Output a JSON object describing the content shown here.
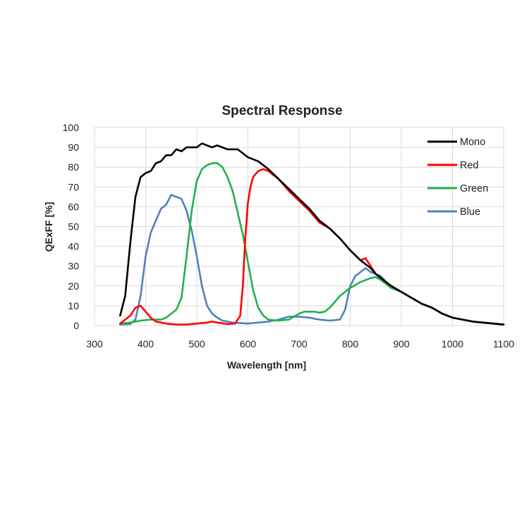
{
  "chart_data": {
    "type": "line",
    "title": "Spectral Response",
    "xlabel": "Wavelength [nm]",
    "ylabel": "QExFF [%]",
    "xlim": [
      300,
      1100
    ],
    "ylim": [
      0,
      100
    ],
    "xticks": [
      300,
      400,
      500,
      600,
      700,
      800,
      900,
      1000,
      1100
    ],
    "yticks": [
      0,
      10,
      20,
      30,
      40,
      50,
      60,
      70,
      80,
      90,
      100
    ],
    "grid": true,
    "legend_position": "top-right",
    "series": [
      {
        "name": "Mono",
        "color": "#000000",
        "points": [
          [
            350,
            5
          ],
          [
            360,
            15
          ],
          [
            370,
            42
          ],
          [
            380,
            65
          ],
          [
            390,
            75
          ],
          [
            400,
            77
          ],
          [
            410,
            78
          ],
          [
            420,
            82
          ],
          [
            430,
            83
          ],
          [
            440,
            86
          ],
          [
            450,
            86
          ],
          [
            460,
            89
          ],
          [
            470,
            88
          ],
          [
            480,
            90
          ],
          [
            490,
            90
          ],
          [
            500,
            90
          ],
          [
            510,
            92
          ],
          [
            520,
            91
          ],
          [
            530,
            90
          ],
          [
            540,
            91
          ],
          [
            550,
            90
          ],
          [
            560,
            89
          ],
          [
            570,
            89
          ],
          [
            580,
            89
          ],
          [
            590,
            87
          ],
          [
            600,
            85
          ],
          [
            620,
            83
          ],
          [
            640,
            79
          ],
          [
            660,
            74
          ],
          [
            680,
            69
          ],
          [
            700,
            64
          ],
          [
            720,
            59
          ],
          [
            740,
            53
          ],
          [
            760,
            49
          ],
          [
            780,
            44
          ],
          [
            800,
            38
          ],
          [
            820,
            33
          ],
          [
            840,
            29
          ],
          [
            850,
            26
          ],
          [
            860,
            24
          ],
          [
            880,
            20
          ],
          [
            900,
            17
          ],
          [
            920,
            14
          ],
          [
            940,
            11
          ],
          [
            960,
            9
          ],
          [
            980,
            6
          ],
          [
            1000,
            4
          ],
          [
            1020,
            3
          ],
          [
            1040,
            2
          ],
          [
            1060,
            1.5
          ],
          [
            1080,
            1
          ],
          [
            1100,
            0.5
          ]
        ]
      },
      {
        "name": "Red",
        "color": "#ff0000",
        "points": [
          [
            350,
            1
          ],
          [
            360,
            3
          ],
          [
            370,
            5
          ],
          [
            380,
            9
          ],
          [
            390,
            10
          ],
          [
            400,
            7
          ],
          [
            410,
            4
          ],
          [
            420,
            2
          ],
          [
            440,
            1
          ],
          [
            460,
            0.5
          ],
          [
            480,
            0.5
          ],
          [
            500,
            1
          ],
          [
            520,
            1.5
          ],
          [
            530,
            2
          ],
          [
            540,
            1.5
          ],
          [
            560,
            0.8
          ],
          [
            575,
            1
          ],
          [
            585,
            5
          ],
          [
            590,
            20
          ],
          [
            595,
            45
          ],
          [
            600,
            62
          ],
          [
            605,
            70
          ],
          [
            610,
            75
          ],
          [
            620,
            78
          ],
          [
            630,
            79
          ],
          [
            640,
            78
          ],
          [
            660,
            74
          ],
          [
            680,
            68
          ],
          [
            700,
            63
          ],
          [
            720,
            58
          ],
          [
            740,
            52
          ],
          [
            760,
            49
          ],
          [
            780,
            44
          ],
          [
            800,
            38
          ],
          [
            820,
            33
          ],
          [
            830,
            34
          ],
          [
            840,
            30
          ],
          [
            850,
            26
          ],
          [
            860,
            24
          ],
          [
            880,
            20
          ],
          [
            900,
            17
          ],
          [
            920,
            14
          ],
          [
            940,
            11
          ],
          [
            960,
            9
          ],
          [
            980,
            6
          ],
          [
            1000,
            4
          ],
          [
            1020,
            3
          ],
          [
            1040,
            2
          ],
          [
            1060,
            1.5
          ],
          [
            1080,
            1
          ],
          [
            1100,
            0.5
          ]
        ]
      },
      {
        "name": "Green",
        "color": "#22b14c",
        "points": [
          [
            350,
            1
          ],
          [
            370,
            1.5
          ],
          [
            390,
            2.5
          ],
          [
            410,
            3
          ],
          [
            430,
            3
          ],
          [
            440,
            4
          ],
          [
            450,
            6
          ],
          [
            460,
            8
          ],
          [
            470,
            14
          ],
          [
            480,
            35
          ],
          [
            490,
            58
          ],
          [
            500,
            73
          ],
          [
            510,
            79
          ],
          [
            520,
            81
          ],
          [
            530,
            82
          ],
          [
            540,
            82
          ],
          [
            550,
            80
          ],
          [
            560,
            75
          ],
          [
            570,
            68
          ],
          [
            580,
            57
          ],
          [
            590,
            46
          ],
          [
            600,
            32
          ],
          [
            610,
            18
          ],
          [
            620,
            9
          ],
          [
            630,
            5
          ],
          [
            640,
            3
          ],
          [
            660,
            2.5
          ],
          [
            680,
            3
          ],
          [
            700,
            6
          ],
          [
            710,
            7
          ],
          [
            720,
            7
          ],
          [
            730,
            7
          ],
          [
            740,
            6.5
          ],
          [
            750,
            7
          ],
          [
            760,
            9
          ],
          [
            770,
            12
          ],
          [
            780,
            15
          ],
          [
            800,
            19
          ],
          [
            820,
            22
          ],
          [
            840,
            24
          ],
          [
            850,
            24.5
          ],
          [
            860,
            23
          ],
          [
            870,
            21
          ],
          [
            880,
            19
          ],
          [
            900,
            17
          ],
          [
            920,
            14
          ],
          [
            940,
            11
          ],
          [
            960,
            9
          ],
          [
            980,
            6
          ],
          [
            1000,
            4
          ],
          [
            1020,
            3
          ],
          [
            1040,
            2
          ],
          [
            1060,
            1.5
          ],
          [
            1080,
            1
          ],
          [
            1100,
            0.5
          ]
        ]
      },
      {
        "name": "Blue",
        "color": "#4f81bd",
        "points": [
          [
            350,
            0.5
          ],
          [
            370,
            0.8
          ],
          [
            380,
            3
          ],
          [
            390,
            15
          ],
          [
            400,
            35
          ],
          [
            410,
            47
          ],
          [
            420,
            53
          ],
          [
            430,
            59
          ],
          [
            440,
            61
          ],
          [
            450,
            66
          ],
          [
            460,
            65
          ],
          [
            470,
            64
          ],
          [
            480,
            58
          ],
          [
            490,
            48
          ],
          [
            500,
            35
          ],
          [
            510,
            20
          ],
          [
            520,
            10
          ],
          [
            530,
            6
          ],
          [
            540,
            4
          ],
          [
            550,
            2.5
          ],
          [
            570,
            1.5
          ],
          [
            600,
            1
          ],
          [
            620,
            1.5
          ],
          [
            640,
            2
          ],
          [
            660,
            3
          ],
          [
            680,
            4.5
          ],
          [
            700,
            4.5
          ],
          [
            720,
            4
          ],
          [
            740,
            3
          ],
          [
            760,
            2.5
          ],
          [
            780,
            3
          ],
          [
            790,
            8
          ],
          [
            800,
            20
          ],
          [
            810,
            25
          ],
          [
            820,
            27
          ],
          [
            830,
            29
          ],
          [
            840,
            27
          ],
          [
            850,
            26
          ],
          [
            860,
            25
          ],
          [
            870,
            22
          ],
          [
            880,
            19
          ],
          [
            900,
            17
          ],
          [
            920,
            14
          ],
          [
            940,
            11
          ],
          [
            960,
            9
          ],
          [
            980,
            6
          ],
          [
            1000,
            4
          ],
          [
            1020,
            3
          ],
          [
            1040,
            2
          ],
          [
            1060,
            1.5
          ],
          [
            1080,
            1
          ],
          [
            1100,
            0.5
          ]
        ]
      }
    ]
  }
}
